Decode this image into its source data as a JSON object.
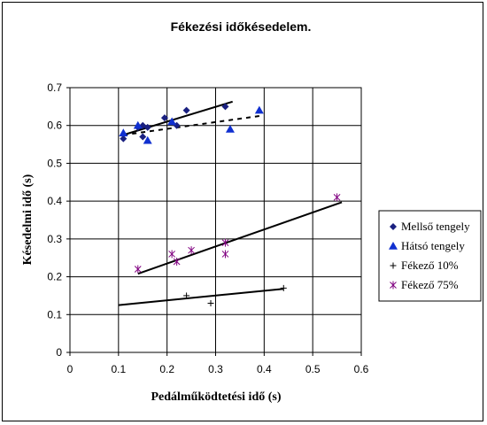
{
  "chart_data": {
    "type": "scatter",
    "title": "Fékezési időkésedelem.",
    "xlabel": "Pedálműködtetési idő (s)",
    "ylabel": "Késedelmi idő (s)",
    "xlim": [
      0,
      0.6
    ],
    "ylim": [
      0,
      0.7
    ],
    "x_ticks": [
      "0",
      "0.1",
      "0.2",
      "0.3",
      "0.4",
      "0.5",
      "0.6"
    ],
    "y_ticks": [
      "0",
      "0.1",
      "0.2",
      "0.3",
      "0.4",
      "0.5",
      "0.6",
      "0.7"
    ],
    "grid": true,
    "legend_position": "right",
    "series": [
      {
        "name": "Mellső tengely",
        "marker": "diamond",
        "color": "#1a2080",
        "points": [
          [
            0.11,
            0.565
          ],
          [
            0.14,
            0.595
          ],
          [
            0.15,
            0.57
          ],
          [
            0.15,
            0.6
          ],
          [
            0.16,
            0.595
          ],
          [
            0.195,
            0.62
          ],
          [
            0.22,
            0.6
          ],
          [
            0.24,
            0.64
          ],
          [
            0.32,
            0.65
          ]
        ],
        "trend": {
          "x1": 0.11,
          "y1": 0.575,
          "x2": 0.335,
          "y2": 0.663,
          "dash": false
        }
      },
      {
        "name": "Hátsó tengely",
        "marker": "triangle",
        "color": "#1030d0",
        "points": [
          [
            0.11,
            0.58
          ],
          [
            0.14,
            0.6
          ],
          [
            0.16,
            0.56
          ],
          [
            0.21,
            0.61
          ],
          [
            0.33,
            0.59
          ],
          [
            0.39,
            0.64
          ]
        ],
        "trend": {
          "x1": 0.11,
          "y1": 0.575,
          "x2": 0.39,
          "y2": 0.625,
          "dash": true
        }
      },
      {
        "name": "Fékező 10%",
        "marker": "plus",
        "color": "#000000",
        "points": [
          [
            0.24,
            0.15
          ],
          [
            0.29,
            0.13
          ],
          [
            0.44,
            0.17
          ]
        ],
        "trend": {
          "x1": 0.1,
          "y1": 0.125,
          "x2": 0.44,
          "y2": 0.168,
          "dash": false
        }
      },
      {
        "name": "Fékező 75%",
        "marker": "star",
        "color": "#800080",
        "points": [
          [
            0.14,
            0.22
          ],
          [
            0.21,
            0.26
          ],
          [
            0.22,
            0.24
          ],
          [
            0.25,
            0.27
          ],
          [
            0.32,
            0.29
          ],
          [
            0.32,
            0.26
          ],
          [
            0.55,
            0.41
          ]
        ],
        "trend": {
          "x1": 0.14,
          "y1": 0.208,
          "x2": 0.56,
          "y2": 0.397,
          "dash": false
        }
      }
    ]
  }
}
